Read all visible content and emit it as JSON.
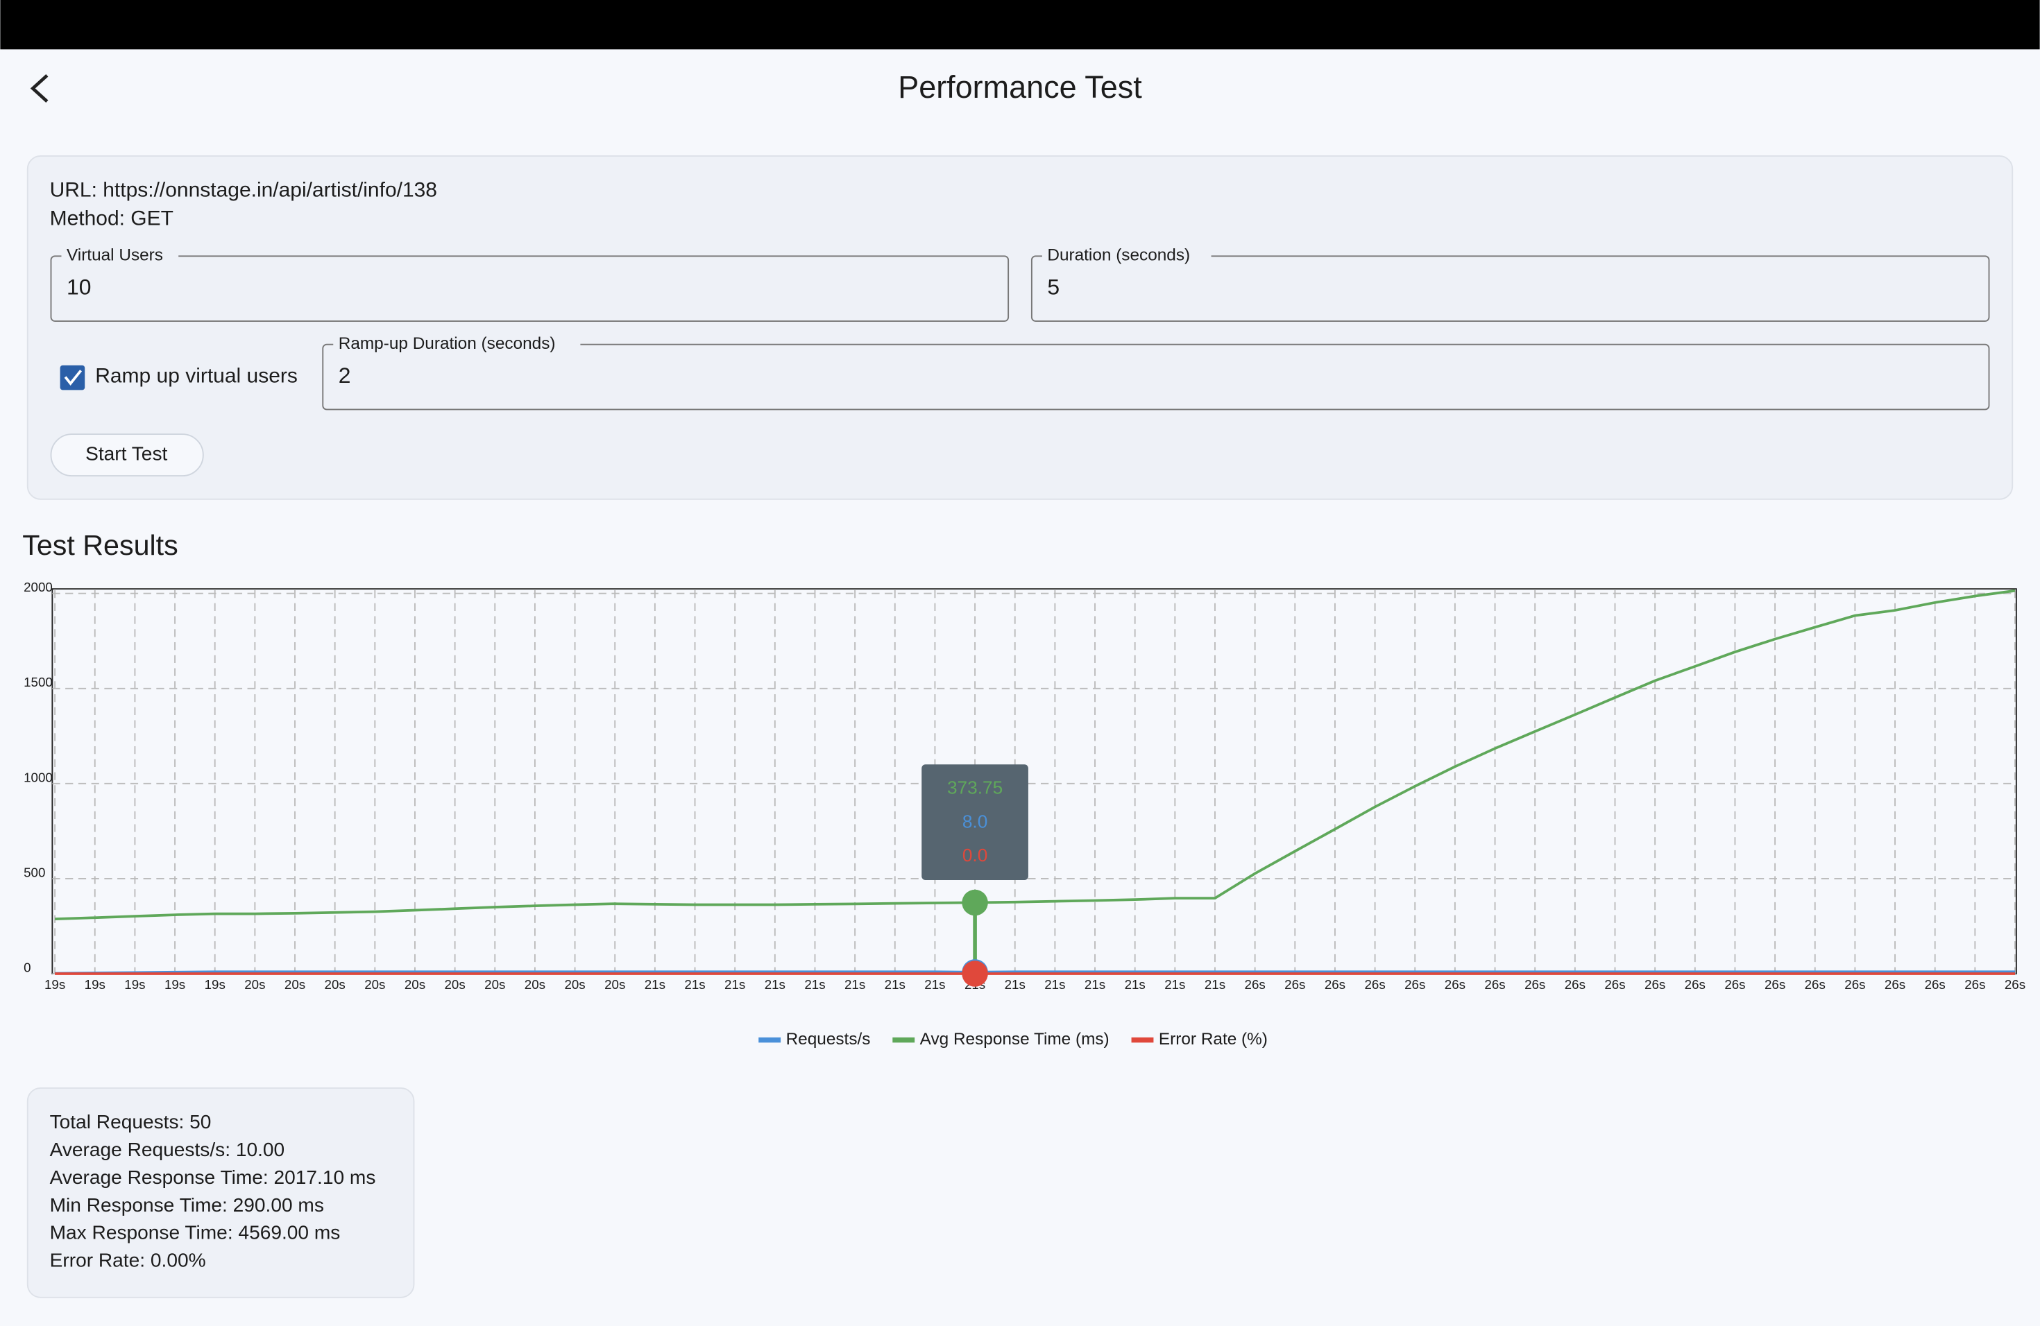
{
  "header": {
    "title": "Performance Test"
  },
  "info": {
    "url": "URL: https://onnstage.in/api/artist/info/138",
    "method": "Method: GET"
  },
  "form": {
    "virtual_users": {
      "label": "Virtual Users",
      "value": "10"
    },
    "duration": {
      "label": "Duration (seconds)",
      "value": "5"
    },
    "ramp_checkbox": "Ramp up virtual users",
    "ramp_duration": {
      "label": "Ramp-up Duration (seconds)",
      "value": "2"
    },
    "button": "Start Test"
  },
  "results_title": "Test Results",
  "chart_data": {
    "type": "line",
    "categories": [
      "19s",
      "19s",
      "19s",
      "19s",
      "19s",
      "20s",
      "20s",
      "20s",
      "20s",
      "20s",
      "20s",
      "20s",
      "20s",
      "20s",
      "20s",
      "21s",
      "21s",
      "21s",
      "21s",
      "21s",
      "21s",
      "21s",
      "21s",
      "21s",
      "21s",
      "21s",
      "21s",
      "21s",
      "21s",
      "21s",
      "26s",
      "26s",
      "26s",
      "26s",
      "26s",
      "26s",
      "26s",
      "26s",
      "26s",
      "26s",
      "26s",
      "26s",
      "26s",
      "26s",
      "26s",
      "26s",
      "26s",
      "26s",
      "26s",
      "26s"
    ],
    "series": [
      {
        "name": "Requests/s",
        "color": "#4a90d9",
        "values": [
          2,
          4,
          6,
          8,
          10,
          10,
          10,
          10,
          10,
          10,
          10,
          10,
          10,
          10,
          10,
          10,
          10,
          10,
          10,
          10,
          10,
          10,
          10,
          8,
          10,
          10,
          10,
          10,
          10,
          10,
          10,
          10,
          10,
          10,
          10,
          10,
          10,
          10,
          10,
          10,
          10,
          10,
          10,
          10,
          10,
          10,
          10,
          10,
          10,
          10
        ]
      },
      {
        "name": "Avg Response Time (ms)",
        "color": "#5fa85a",
        "values": [
          288,
          295,
          302,
          310,
          315,
          315,
          318,
          322,
          326,
          334,
          342,
          350,
          357,
          363,
          368,
          365,
          363,
          363,
          363,
          365,
          367,
          370,
          372,
          373.75,
          377,
          381,
          385,
          390,
          397,
          397,
          527,
          644,
          760,
          877,
          986,
          1089,
          1185,
          1274,
          1363,
          1452,
          1541,
          1616,
          1692,
          1760,
          1822,
          1884,
          1911,
          1952,
          1986,
          2014
        ]
      },
      {
        "name": "Error Rate (%)",
        "color": "#e0483b",
        "values": [
          0,
          0,
          0,
          0,
          0,
          0,
          0,
          0,
          0,
          0,
          0,
          0,
          0,
          0,
          0,
          0,
          0,
          0,
          0,
          0,
          0,
          0,
          0,
          0,
          0,
          0,
          0,
          0,
          0,
          0,
          0,
          0,
          0,
          0,
          0,
          0,
          0,
          0,
          0,
          0,
          0,
          0,
          0,
          0,
          0,
          0,
          0,
          0,
          0,
          0
        ]
      }
    ],
    "tooltip": [
      "373.75",
      "8.0",
      "0.0"
    ],
    "ylim": [
      0,
      2017
    ],
    "yticks": [
      0,
      500,
      1000,
      1500,
      2000
    ],
    "grid": true,
    "legend": "bottom"
  },
  "stats": [
    "Total Requests: 50",
    "Average Requests/s: 10.00",
    "Average Response Time: 2017.10 ms",
    "Min Response Time: 290.00 ms",
    "Max Response Time: 4569.00 ms",
    "Error Rate: 0.00%"
  ]
}
